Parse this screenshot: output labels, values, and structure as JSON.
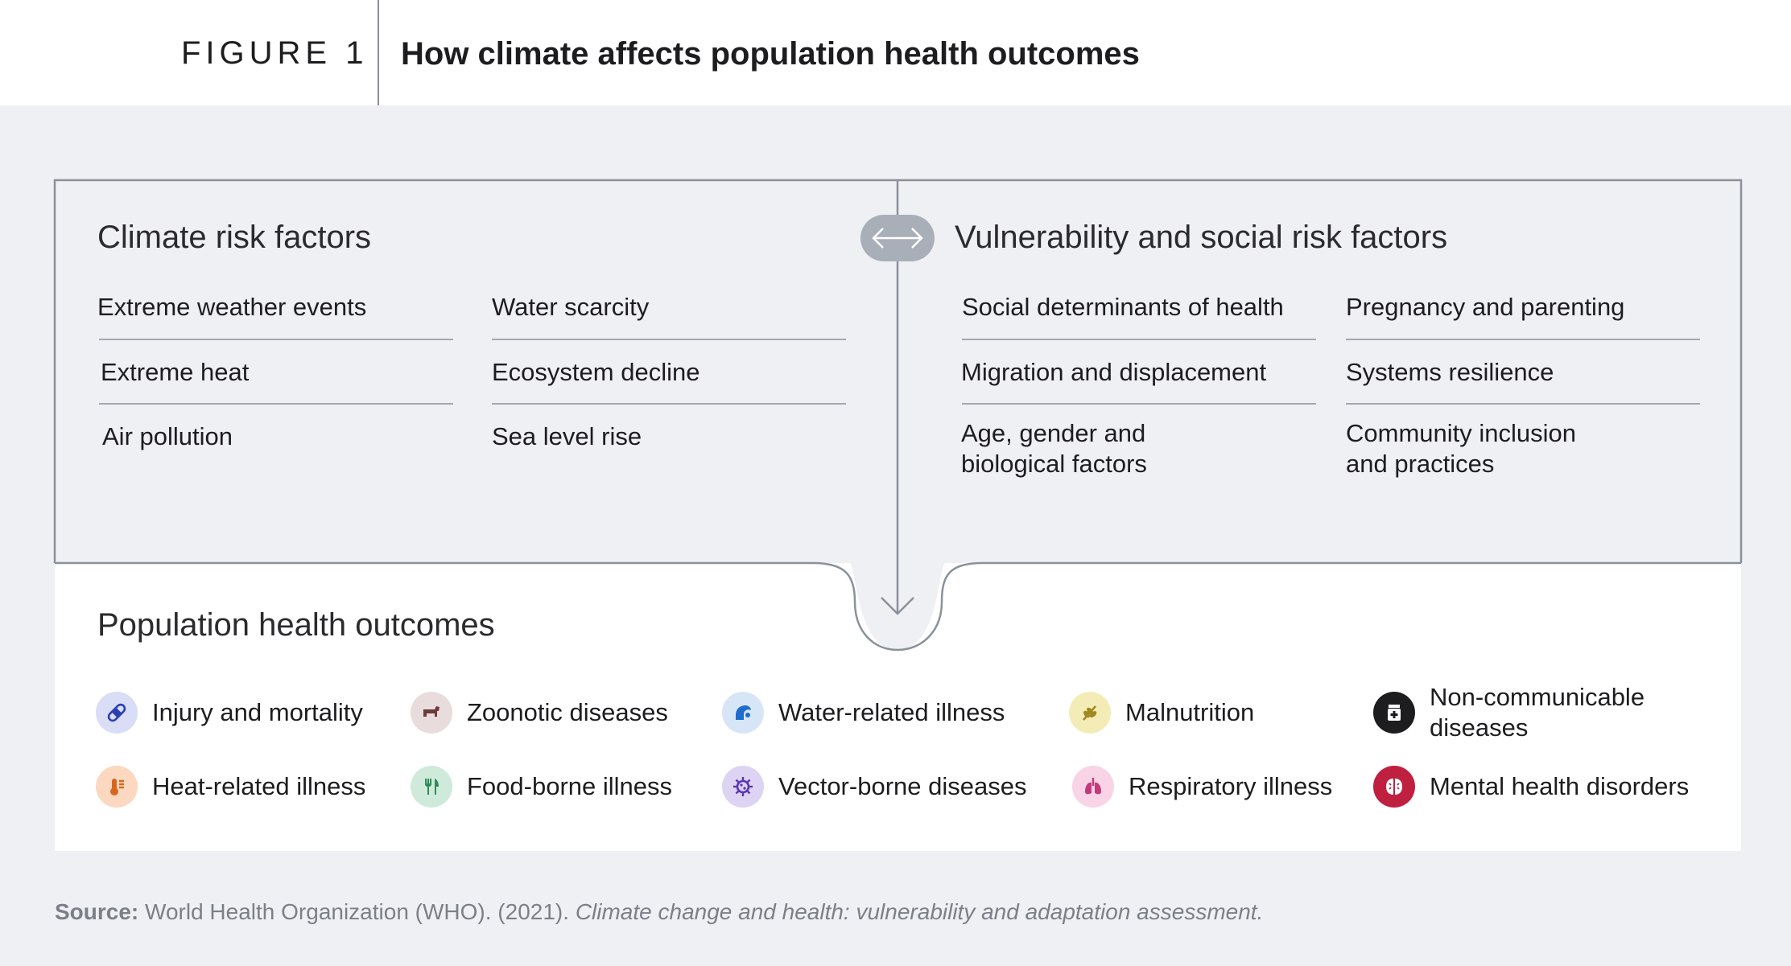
{
  "figure": {
    "label": "FIGURE 1",
    "title": "How climate affects population health outcomes"
  },
  "climate": {
    "heading": "Climate risk factors",
    "col1": [
      "Extreme weather events",
      "Extreme heat",
      "Air pollution"
    ],
    "col2": [
      "Water scarcity",
      "Ecosystem decline",
      "Sea level rise"
    ]
  },
  "vulnerability": {
    "heading": "Vulnerability and social risk factors",
    "col1": [
      "Social determinants of health",
      "Migration and displacement",
      "Age, gender and biological factors"
    ],
    "col2": [
      "Pregnancy and parenting",
      "Systems resilience",
      "Community inclusion and practices"
    ]
  },
  "outcomes": {
    "heading": "Population health outcomes",
    "items": [
      {
        "label": "Injury and mortality",
        "icon": "bandage-icon",
        "color": "#d9ddf5",
        "fg": "#2b3fb0"
      },
      {
        "label": "Zoonotic diseases",
        "icon": "animal-icon",
        "color": "#e8dcdc",
        "fg": "#6b3a3a"
      },
      {
        "label": "Water-related illness",
        "icon": "wave-icon",
        "color": "#d7e6f7",
        "fg": "#1f6bd0"
      },
      {
        "label": "Malnutrition",
        "icon": "wheat-icon",
        "color": "#f4ecb7",
        "fg": "#a08920"
      },
      {
        "label": "Non-communicable diseases",
        "icon": "medicine-icon",
        "color": "#1d1d1f",
        "fg": "#ffffff"
      },
      {
        "label": "Heat-related illness",
        "icon": "thermometer-icon",
        "color": "#fbd8bf",
        "fg": "#d9661f"
      },
      {
        "label": "Food-borne illness",
        "icon": "fork-knife-icon",
        "color": "#cfeadb",
        "fg": "#2f8a55"
      },
      {
        "label": "Vector-borne diseases",
        "icon": "virus-icon",
        "color": "#ddd3f2",
        "fg": "#5b36b5"
      },
      {
        "label": "Respiratory illness",
        "icon": "lungs-icon",
        "color": "#f9d3e6",
        "fg": "#c23a7a"
      },
      {
        "label": "Mental health disorders",
        "icon": "brain-icon",
        "color": "#c0203f",
        "fg": "#ffffff"
      }
    ]
  },
  "source": {
    "prefix": "Source:",
    "text": " World Health Organization (WHO). (2021). ",
    "italic": "Climate change and health: vulnerability and adaptation assessment."
  },
  "colors": {
    "frame": "#8a919c",
    "badge": "#a9afb9"
  }
}
